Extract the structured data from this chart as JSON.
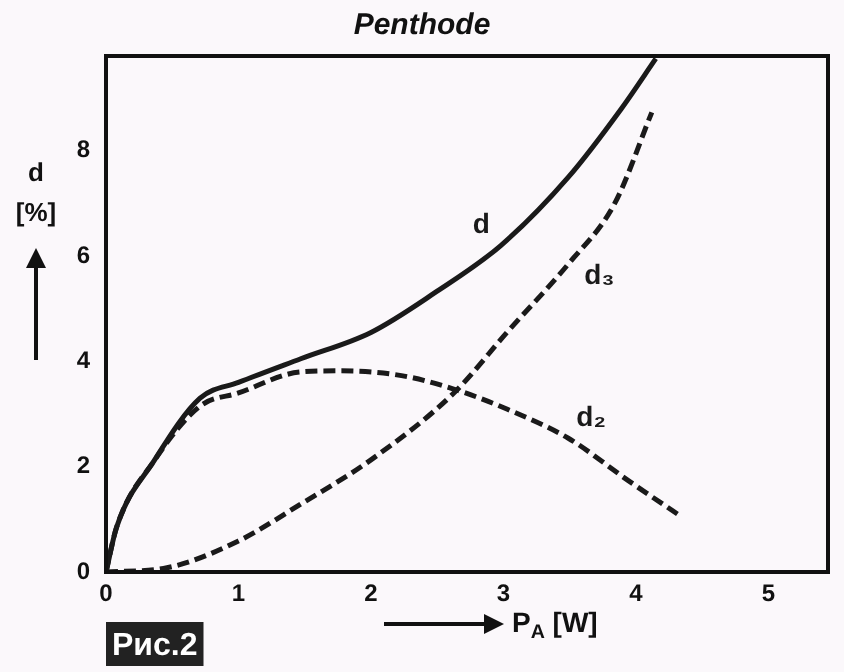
{
  "chart_data": {
    "type": "line",
    "title": "Penthode",
    "xlabel": "P$_{A}$ [W]",
    "ylabel": "d [%]",
    "annotations": [
      "Рис.2"
    ],
    "xlim": [
      0,
      5.45
    ],
    "xticks": [
      0,
      1,
      2,
      3,
      4,
      5
    ],
    "ylim": [
      0,
      9.8
    ],
    "yticks": [
      0,
      2,
      4,
      6,
      8
    ],
    "grid": false,
    "legend": false,
    "marker": "none",
    "series": [
      {
        "name": "d",
        "color": "#1a1a1a",
        "line_style": "solid",
        "x": [
          0,
          0.08,
          0.36,
          0.71,
          1,
          1.47,
          2,
          2.48,
          2.98,
          3.49,
          3.89,
          4.15
        ],
        "values": [
          0,
          0.85,
          2.1,
          3.3,
          3.6,
          4.05,
          4.55,
          5.3,
          6.2,
          7.5,
          8.8,
          9.75
        ]
      },
      {
        "name": "d₂",
        "color": "#1a1a1a",
        "line_style": "dashed",
        "x": [
          0,
          0.08,
          0.36,
          0.71,
          1,
          1.47,
          1.77,
          2.23,
          2.63,
          3.03,
          3.49,
          3.94,
          4.35
        ],
        "values": [
          0,
          0.85,
          2.1,
          3.15,
          3.4,
          3.8,
          3.82,
          3.73,
          3.47,
          3.09,
          2.54,
          1.74,
          1.04
        ]
      },
      {
        "name": "d₃",
        "color": "#1a1a1a",
        "line_style": "dashed",
        "x": [
          0,
          0.46,
          1,
          1.47,
          2,
          2.63,
          3.03,
          3.49,
          3.84,
          4.12
        ],
        "values": [
          0,
          0.08,
          0.59,
          1.29,
          2.13,
          3.41,
          4.56,
          5.85,
          7,
          8.73
        ]
      }
    ]
  }
}
